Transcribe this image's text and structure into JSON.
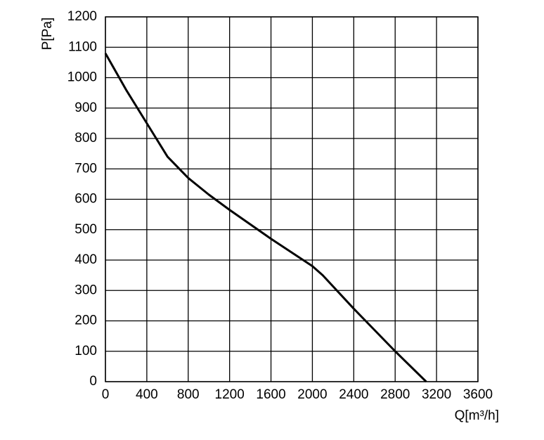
{
  "chart_data": {
    "type": "line",
    "x_label": "Q[m³/h]",
    "y_label": "P[Pa]",
    "x": [
      0,
      200,
      400,
      600,
      800,
      1000,
      1200,
      1600,
      2000,
      2100,
      2400,
      2800,
      3100
    ],
    "values": [
      1080,
      960,
      850,
      740,
      670,
      615,
      565,
      470,
      380,
      350,
      240,
      100,
      0
    ],
    "color": "#000000",
    "xlim": [
      0,
      3600
    ],
    "xticks": [
      0,
      400,
      800,
      1200,
      1600,
      2000,
      2400,
      2800,
      3200,
      3600
    ],
    "ylim": [
      0,
      1200
    ],
    "yticks": [
      0,
      100,
      200,
      300,
      400,
      500,
      600,
      700,
      800,
      900,
      1000,
      1100,
      1200
    ],
    "grid": true
  }
}
